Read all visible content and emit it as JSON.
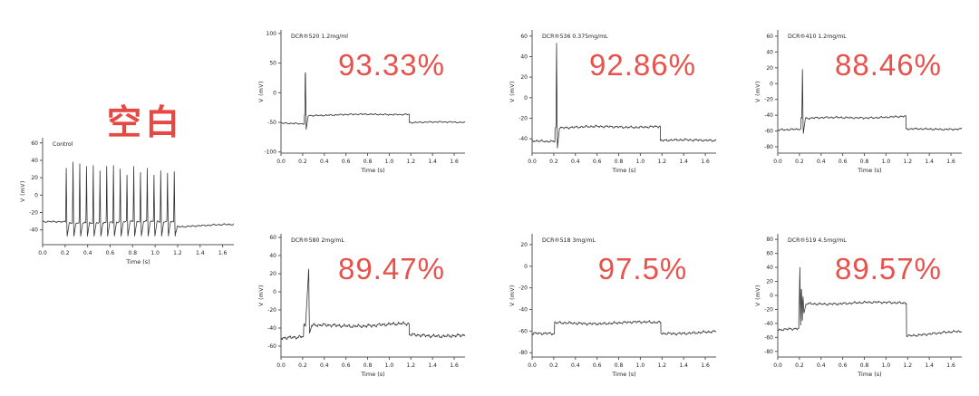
{
  "colors": {
    "annotation_red": "#e8524d",
    "title_red": "#e64944",
    "trace": "#333333",
    "axis": "#555555",
    "background": "#ffffff"
  },
  "chart_data": [
    {
      "id": "control",
      "type": "line",
      "title": "空白",
      "label": "Control",
      "xlabel": "Time (s)",
      "ylabel": "V (mV)",
      "xlim": [
        0,
        1.7
      ],
      "ylim": [
        -57,
        66
      ],
      "xticks": [
        0.0,
        0.2,
        0.4,
        0.6,
        0.8,
        1.0,
        1.2,
        1.4,
        1.6
      ],
      "yticks": [
        60,
        40,
        20,
        0,
        -20,
        -40
      ],
      "noise_mV": 1.0,
      "spike_trough": -48,
      "segments": [
        {
          "t0": 0.0,
          "t1": 0.205,
          "v0": -31,
          "v1": -31
        },
        {
          "t0": 0.205,
          "t1": 1.185,
          "v0": -32,
          "v1": -30
        },
        {
          "t0": 1.185,
          "t1": 1.7,
          "v0": -36,
          "v1": -34
        }
      ],
      "spikes": [
        {
          "t": 0.21,
          "peak": 31
        },
        {
          "t": 0.27,
          "peak": 38
        },
        {
          "t": 0.33,
          "peak": 36
        },
        {
          "t": 0.39,
          "peak": 33
        },
        {
          "t": 0.45,
          "peak": 34
        },
        {
          "t": 0.51,
          "peak": 28
        },
        {
          "t": 0.57,
          "peak": 33
        },
        {
          "t": 0.63,
          "peak": 34
        },
        {
          "t": 0.69,
          "peak": 30
        },
        {
          "t": 0.75,
          "peak": 23
        },
        {
          "t": 0.81,
          "peak": 33
        },
        {
          "t": 0.87,
          "peak": 26
        },
        {
          "t": 0.93,
          "peak": 31
        },
        {
          "t": 0.99,
          "peak": 23
        },
        {
          "t": 1.05,
          "peak": 28
        },
        {
          "t": 1.11,
          "peak": 25
        },
        {
          "t": 1.17,
          "peak": 27
        }
      ]
    },
    {
      "id": "dcr520",
      "type": "line",
      "label": "DCR®520 1.2mg/ml",
      "annotation": "93.33%",
      "xlabel": "Time (s)",
      "ylabel": "V (mV)",
      "xlim": [
        0,
        1.7
      ],
      "ylim": [
        -102,
        106
      ],
      "xticks": [
        0.0,
        0.2,
        0.4,
        0.6,
        0.8,
        1.0,
        1.2,
        1.4,
        1.6
      ],
      "yticks": [
        100,
        50,
        0,
        -50,
        -100
      ],
      "noise_mV": 1.3,
      "spike_trough": -62,
      "segments": [
        {
          "t0": 0.0,
          "t1": 0.215,
          "v0": -52,
          "v1": -52
        },
        {
          "t0": 0.215,
          "t1": 1.185,
          "v0": -38,
          "v1": -36
        },
        {
          "t0": 1.185,
          "t1": 1.7,
          "v0": -50,
          "v1": -50
        }
      ],
      "spikes": [
        {
          "t": 0.225,
          "peak": 50
        }
      ]
    },
    {
      "id": "dcr536",
      "type": "line",
      "label": "DCR®536 0.375mg/mL",
      "annotation": "92.86%",
      "xlabel": "Time (s)",
      "ylabel": "V (mV)",
      "xlim": [
        0,
        1.7
      ],
      "ylim": [
        -54,
        66
      ],
      "xticks": [
        0.0,
        0.2,
        0.4,
        0.6,
        0.8,
        1.0,
        1.2,
        1.4,
        1.6
      ],
      "yticks": [
        60,
        40,
        20,
        0,
        -20,
        -40
      ],
      "noise_mV": 1.2,
      "spike_trough": -50,
      "segments": [
        {
          "t0": 0.0,
          "t1": 0.212,
          "v0": -42,
          "v1": -42
        },
        {
          "t0": 0.212,
          "t1": 1.185,
          "v0": -29,
          "v1": -28
        },
        {
          "t0": 1.185,
          "t1": 1.7,
          "v0": -42,
          "v1": -41
        }
      ],
      "spikes": [
        {
          "t": 0.226,
          "peak": 53
        }
      ]
    },
    {
      "id": "dcr410",
      "type": "line",
      "label": "DCR®410 1.2mg/mL",
      "annotation": "88.46%",
      "xlabel": "Time (s)",
      "ylabel": "V (mV)",
      "xlim": [
        0,
        1.7
      ],
      "ylim": [
        -88,
        68
      ],
      "xticks": [
        0.0,
        0.2,
        0.4,
        0.6,
        0.8,
        1.0,
        1.2,
        1.4,
        1.6
      ],
      "yticks": [
        60,
        40,
        20,
        0,
        -20,
        -40,
        -60,
        -80
      ],
      "noise_mV": 1.3,
      "spike_trough": -64,
      "segments": [
        {
          "t0": 0.0,
          "t1": 0.215,
          "v0": -58,
          "v1": -57
        },
        {
          "t0": 0.215,
          "t1": 1.185,
          "v0": -44,
          "v1": -42
        },
        {
          "t0": 1.185,
          "t1": 1.7,
          "v0": -58,
          "v1": -57
        }
      ],
      "spikes": [
        {
          "t": 0.228,
          "peak": 18
        }
      ]
    },
    {
      "id": "dcr580",
      "type": "line",
      "label": "DCR®580 2mg/mL",
      "annotation": "89.47%",
      "xlabel": "Time (s)",
      "ylabel": "V (mV)",
      "xlim": [
        0,
        1.7
      ],
      "ylim": [
        -72,
        64
      ],
      "xticks": [
        0.0,
        0.2,
        0.4,
        0.6,
        0.8,
        1.0,
        1.2,
        1.4,
        1.6
      ],
      "yticks": [
        60,
        40,
        20,
        0,
        -20,
        -40,
        -60
      ],
      "noise_mV": 2.0,
      "spike_trough": -46,
      "segments": [
        {
          "t0": 0.0,
          "t1": 0.21,
          "v0": -50,
          "v1": -50
        },
        {
          "t0": 0.21,
          "t1": 1.185,
          "v0": -38,
          "v1": -36
        },
        {
          "t0": 1.185,
          "t1": 1.7,
          "v0": -48,
          "v1": -48
        }
      ],
      "spikes": [
        {
          "t": 0.256,
          "peak": 25,
          "rise": 0.03
        }
      ]
    },
    {
      "id": "dcr518",
      "type": "line",
      "label": "DCR®518 3mg/mL",
      "annotation": "97.5%",
      "xlabel": "Time (s)",
      "ylabel": "V (mV)",
      "xlim": [
        0,
        1.7
      ],
      "ylim": [
        -84,
        30
      ],
      "xticks": [
        0.0,
        0.2,
        0.4,
        0.6,
        0.8,
        1.0,
        1.2,
        1.4,
        1.6
      ],
      "yticks": [
        20,
        0,
        -20,
        -40,
        -60,
        -80
      ],
      "noise_mV": 1.3,
      "spike_trough": -60,
      "segments": [
        {
          "t0": 0.0,
          "t1": 0.207,
          "v0": -62,
          "v1": -63
        },
        {
          "t0": 0.207,
          "t1": 1.19,
          "v0": -53,
          "v1": -52
        },
        {
          "t0": 1.19,
          "t1": 1.7,
          "v0": -62,
          "v1": -61
        }
      ],
      "spikes": []
    },
    {
      "id": "dcr519",
      "type": "line",
      "label": "DCR®519 4.5mg/mL",
      "annotation": "89.57%",
      "xlabel": "Time (s)",
      "ylabel": "V (mV)",
      "xlim": [
        0,
        1.7
      ],
      "ylim": [
        -88,
        88
      ],
      "xticks": [
        0.0,
        0.2,
        0.4,
        0.6,
        0.8,
        1.0,
        1.2,
        1.4,
        1.6
      ],
      "yticks": [
        80,
        60,
        40,
        20,
        0,
        -20,
        -40,
        -60,
        -80
      ],
      "noise_mV": 1.8,
      "spike_trough": -44,
      "segments": [
        {
          "t0": 0.0,
          "t1": 0.196,
          "v0": -50,
          "v1": -48
        },
        {
          "t0": 0.196,
          "t1": 1.19,
          "v0": -12,
          "v1": -10
        },
        {
          "t0": 1.19,
          "t1": 1.7,
          "v0": -57,
          "v1": -52
        }
      ],
      "spikes": [
        {
          "t": 0.204,
          "peak": 40,
          "trough": -44
        },
        {
          "t": 0.219,
          "peak": 14,
          "trough": -36
        },
        {
          "t": 0.234,
          "peak": -2,
          "trough": -26
        }
      ]
    }
  ]
}
